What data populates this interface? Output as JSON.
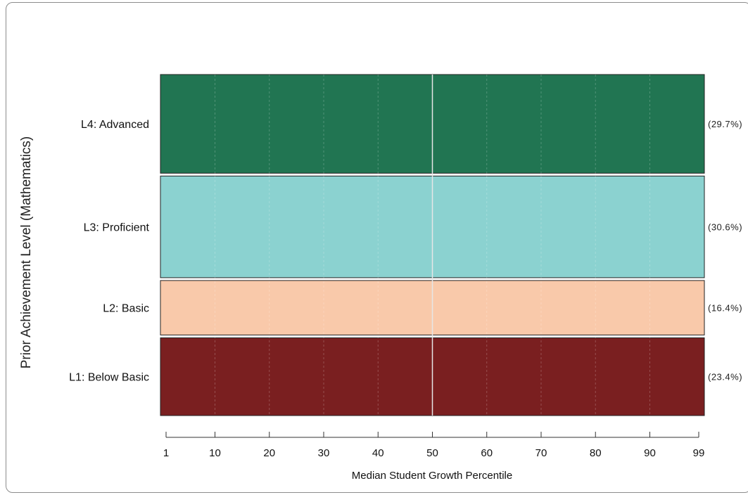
{
  "chart_data": {
    "type": "bar",
    "orientation": "horizontal",
    "title": "",
    "xlabel": "Median Student Growth Percentile",
    "ylabel": "Prior Achievement Level (Mathematics)",
    "xlim": [
      1,
      99
    ],
    "xticks": [
      1,
      10,
      20,
      30,
      40,
      50,
      60,
      70,
      80,
      90,
      99
    ],
    "reference_line": 50,
    "grid": true,
    "categories": [
      "L4: Advanced",
      "L3: Proficient",
      "L2: Basic",
      "L1: Below Basic"
    ],
    "percentages": [
      "(29.7%)",
      "(30.6%)",
      "(16.4%)",
      "(23.4%)"
    ],
    "share": [
      29.7,
      30.6,
      16.4,
      23.4
    ],
    "colors": [
      "#217552",
      "#8bd2d0",
      "#f9c9aa",
      "#7a1f20"
    ]
  }
}
